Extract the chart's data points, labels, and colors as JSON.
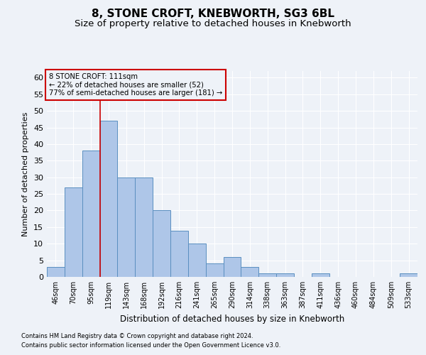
{
  "title1": "8, STONE CROFT, KNEBWORTH, SG3 6BL",
  "title2": "Size of property relative to detached houses in Knebworth",
  "xlabel": "Distribution of detached houses by size in Knebworth",
  "ylabel": "Number of detached properties",
  "categories": [
    "46sqm",
    "70sqm",
    "95sqm",
    "119sqm",
    "143sqm",
    "168sqm",
    "192sqm",
    "216sqm",
    "241sqm",
    "265sqm",
    "290sqm",
    "314sqm",
    "338sqm",
    "363sqm",
    "387sqm",
    "411sqm",
    "436sqm",
    "460sqm",
    "484sqm",
    "509sqm",
    "533sqm"
  ],
  "bar_values": [
    3,
    27,
    38,
    47,
    30,
    30,
    20,
    14,
    10,
    4,
    6,
    3,
    1,
    1,
    0,
    1,
    0,
    0,
    0,
    0,
    1
  ],
  "bar_color": "#aec6e8",
  "bar_edge_color": "#5a8fc0",
  "vline_x": 2.5,
  "annotation_title": "8 STONE CROFT: 111sqm",
  "annotation_line1": "← 22% of detached houses are smaller (52)",
  "annotation_line2": "77% of semi-detached houses are larger (181) →",
  "vline_color": "#cc0000",
  "annotation_box_color": "#cc0000",
  "ylim": [
    0,
    62
  ],
  "yticks": [
    0,
    5,
    10,
    15,
    20,
    25,
    30,
    35,
    40,
    45,
    50,
    55,
    60
  ],
  "footer1": "Contains HM Land Registry data © Crown copyright and database right 2024.",
  "footer2": "Contains public sector information licensed under the Open Government Licence v3.0.",
  "bg_color": "#eef2f8",
  "grid_color": "#ffffff",
  "title1_fontsize": 11,
  "title2_fontsize": 9.5
}
